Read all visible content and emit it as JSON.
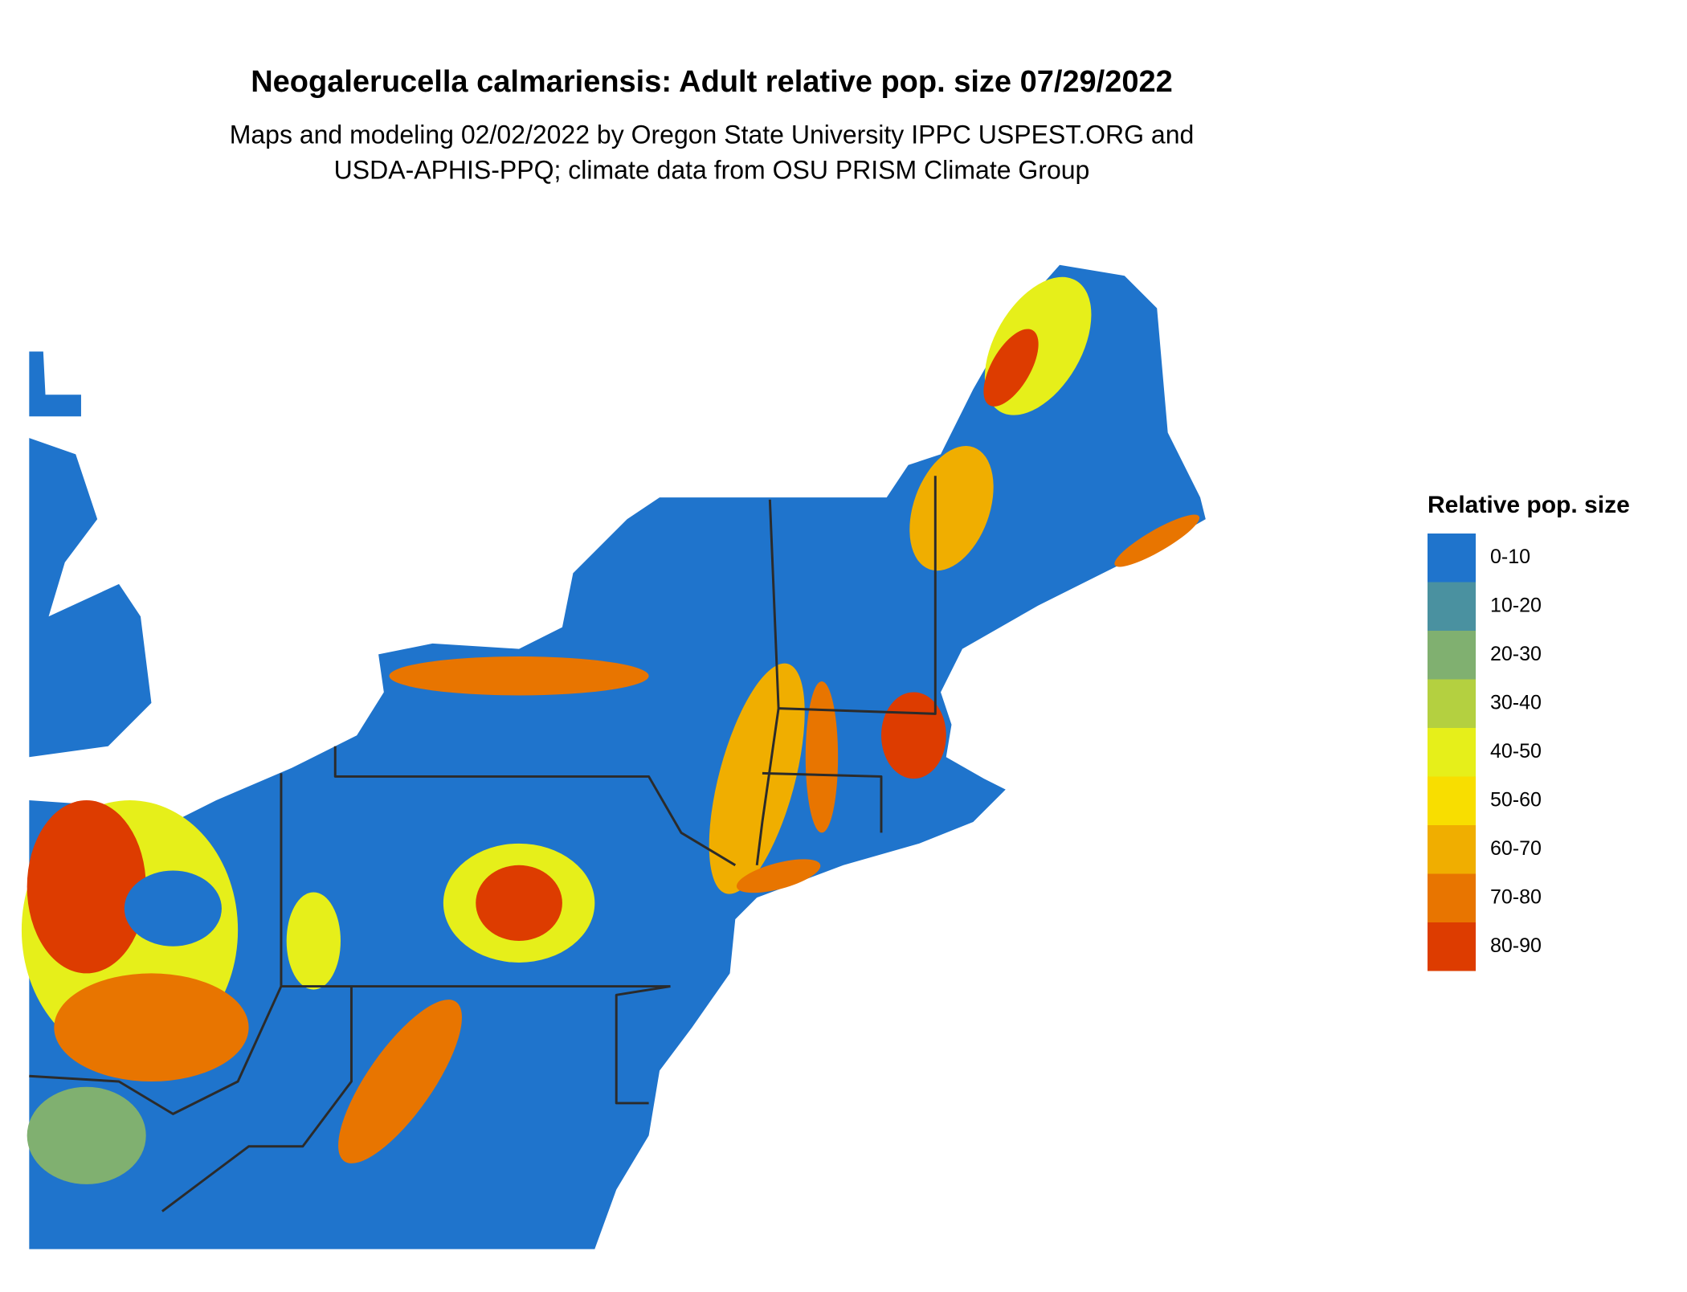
{
  "title": "Neogalerucella calmariensis: Adult relative pop. size 07/29/2022",
  "subtitle": [
    "Maps and modeling 02/02/2022 by Oregon State University IPPC USPEST.ORG and",
    "USDA-APHIS-PPQ; climate data from OSU PRISM Climate Group"
  ],
  "legend": {
    "title": "Relative pop. size",
    "items": [
      {
        "label": "0-10",
        "color": "#1f74cc"
      },
      {
        "label": "10-20",
        "color": "#4a91a0"
      },
      {
        "label": "20-30",
        "color": "#80b070"
      },
      {
        "label": "30-40",
        "color": "#b4d040"
      },
      {
        "label": "40-50",
        "color": "#e6ef1a"
      },
      {
        "label": "50-60",
        "color": "#f8de00"
      },
      {
        "label": "60-70",
        "color": "#f0ae00"
      },
      {
        "label": "70-80",
        "color": "#e87500"
      },
      {
        "label": "80-90",
        "color": "#dd3c00"
      }
    ]
  }
}
